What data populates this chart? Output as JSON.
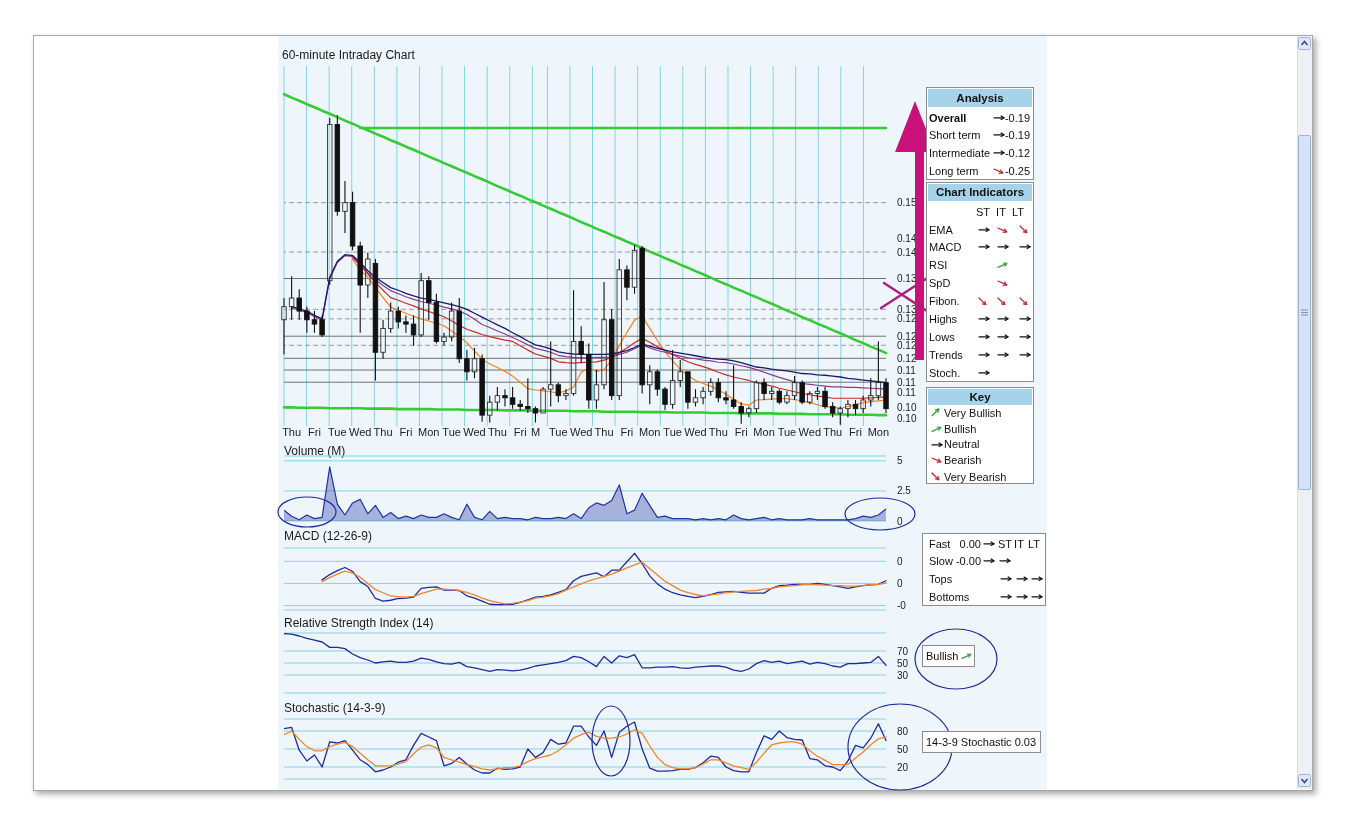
{
  "chart_data": [
    {
      "type": "candlestick",
      "title": "60-minute Intraday Chart",
      "categories": [
        null,
        "Thu",
        null,
        null,
        "Fri",
        null,
        null,
        "Tue",
        null,
        null,
        "Wed",
        null,
        null,
        "Thu",
        null,
        null,
        "Fri",
        null,
        null,
        "Mon",
        null,
        null,
        "Tue",
        null,
        null,
        "Wed",
        null,
        null,
        "Thu",
        null,
        null,
        "Fri",
        null,
        "M",
        null,
        null,
        "Tue",
        null,
        null,
        "Wed",
        null,
        null,
        "Thu",
        null,
        null,
        "Fri",
        null,
        null,
        "Mon",
        null,
        null,
        "Tue",
        null,
        null,
        "Wed",
        null,
        null,
        "Thu",
        null,
        null,
        "Fri",
        null,
        null,
        "Mon",
        null,
        null,
        "Tue",
        null,
        null,
        "Wed",
        null,
        null,
        "Thu",
        null,
        null,
        "Fri",
        null,
        null,
        "Mon",
        null
      ],
      "ohlc": [
        [
          0.124,
          0.129,
          0.116,
          0.127
        ],
        [
          0.127,
          0.134,
          0.124,
          0.129
        ],
        [
          0.129,
          0.131,
          0.124,
          0.126
        ],
        [
          0.126,
          0.127,
          0.121,
          0.124
        ],
        [
          0.124,
          0.126,
          0.121,
          0.123
        ],
        [
          0.124,
          0.125,
          0.12,
          0.1205
        ],
        [
          0.133,
          0.1705,
          0.132,
          0.169
        ],
        [
          0.169,
          0.1712,
          0.148,
          0.149
        ],
        [
          0.149,
          0.156,
          0.144,
          0.151
        ],
        [
          0.151,
          0.1535,
          0.14,
          0.141
        ],
        [
          0.141,
          0.142,
          0.121,
          0.132
        ],
        [
          0.132,
          0.1395,
          0.129,
          0.138
        ],
        [
          0.137,
          0.138,
          0.11,
          0.1165
        ],
        [
          0.1165,
          0.124,
          0.115,
          0.122
        ],
        [
          0.122,
          0.128,
          0.121,
          0.126
        ],
        [
          0.126,
          0.127,
          0.122,
          0.1235
        ],
        [
          0.1235,
          0.125,
          0.121,
          0.123
        ],
        [
          0.123,
          0.125,
          0.118,
          0.1205
        ],
        [
          0.1205,
          0.1348,
          0.12,
          0.133
        ],
        [
          0.133,
          0.134,
          0.124,
          0.128
        ],
        [
          0.128,
          0.13,
          0.1185,
          0.119
        ],
        [
          0.119,
          0.121,
          0.118,
          0.12
        ],
        [
          0.12,
          0.128,
          0.119,
          0.126
        ],
        [
          0.126,
          0.129,
          0.114,
          0.115
        ],
        [
          0.115,
          0.117,
          0.11,
          0.112
        ],
        [
          0.112,
          0.1175,
          0.1105,
          0.115
        ],
        [
          0.115,
          0.116,
          0.1005,
          0.102
        ],
        [
          0.102,
          0.1065,
          0.1003,
          0.105
        ],
        [
          0.105,
          0.1085,
          0.103,
          0.1065
        ],
        [
          0.1065,
          0.108,
          0.104,
          0.106
        ],
        [
          0.106,
          0.1085,
          0.1035,
          0.1045
        ],
        [
          0.1045,
          0.1055,
          0.103,
          0.104
        ],
        [
          0.104,
          0.1105,
          0.1025,
          0.1035
        ],
        [
          0.1035,
          0.104,
          0.1003,
          0.1025
        ],
        [
          0.1025,
          0.1085,
          0.1025,
          0.108
        ],
        [
          0.108,
          0.119,
          0.104,
          0.109
        ],
        [
          0.109,
          0.1095,
          0.105,
          0.1065
        ],
        [
          0.1065,
          0.108,
          0.1055,
          0.107
        ],
        [
          0.107,
          0.1308,
          0.1065,
          0.119
        ],
        [
          0.119,
          0.1225,
          0.114,
          0.116
        ],
        [
          0.116,
          0.1185,
          0.1035,
          0.1055
        ],
        [
          0.1055,
          0.1125,
          0.1035,
          0.109
        ],
        [
          0.109,
          0.1327,
          0.108,
          0.124
        ],
        [
          0.124,
          0.1265,
          0.1055,
          0.1065
        ],
        [
          0.1065,
          0.138,
          0.1055,
          0.1355
        ],
        [
          0.1355,
          0.1365,
          0.1285,
          0.1315
        ],
        [
          0.1315,
          0.1412,
          0.13,
          0.14
        ],
        [
          0.1405,
          0.141,
          0.107,
          0.109
        ],
        [
          0.109,
          0.1135,
          0.1045,
          0.112
        ],
        [
          0.112,
          0.1125,
          0.1065,
          0.108
        ],
        [
          0.108,
          0.1085,
          0.1032,
          0.1045
        ],
        [
          0.1045,
          0.117,
          0.1035,
          0.11
        ],
        [
          0.11,
          0.1147,
          0.1085,
          0.112
        ],
        [
          0.112,
          0.112,
          0.1035,
          0.105
        ],
        [
          0.105,
          0.108,
          0.104,
          0.106
        ],
        [
          0.106,
          0.1085,
          0.1045,
          0.1075
        ],
        [
          0.1075,
          0.1105,
          0.1065,
          0.1095
        ],
        [
          0.1095,
          0.1105,
          0.105,
          0.106
        ],
        [
          0.106,
          0.1075,
          0.1045,
          0.1055
        ],
        [
          0.1055,
          0.1135,
          0.1035,
          0.104
        ],
        [
          0.104,
          0.105,
          0.1,
          0.1025
        ],
        [
          0.1025,
          0.104,
          0.1015,
          0.1035
        ],
        [
          0.1035,
          0.11,
          0.1025,
          0.1095
        ],
        [
          0.1095,
          0.1105,
          0.1055,
          0.107
        ],
        [
          0.107,
          0.1085,
          0.1055,
          0.1075
        ],
        [
          0.1075,
          0.108,
          0.1045,
          0.105
        ],
        [
          0.105,
          0.1075,
          0.1045,
          0.1065
        ],
        [
          0.1065,
          0.111,
          0.1055,
          0.1095
        ],
        [
          0.1095,
          0.11,
          0.1045,
          0.105
        ],
        [
          0.105,
          0.1075,
          0.1045,
          0.107
        ],
        [
          0.107,
          0.1085,
          0.1055,
          0.1075
        ],
        [
          0.1075,
          0.1085,
          0.1035,
          0.104
        ],
        [
          0.104,
          0.105,
          0.1015,
          0.1025
        ],
        [
          0.1025,
          0.104,
          0.0998,
          0.1035
        ],
        [
          0.1035,
          0.1055,
          0.1015,
          0.1045
        ],
        [
          0.1045,
          0.1055,
          0.102,
          0.1035
        ],
        [
          0.1035,
          0.1065,
          0.1025,
          0.1055
        ],
        [
          0.1055,
          0.1105,
          0.104,
          0.1065
        ],
        [
          0.1065,
          0.119,
          0.1055,
          0.1095
        ],
        [
          0.1095,
          0.1105,
          0.1025,
          0.1035
        ]
      ],
      "ylim": [
        0.0995,
        0.1825
      ],
      "yticks": [
        {
          "value": 0.151,
          "label": "0.15"
        },
        {
          "value": 0.1427,
          "label": "0.14"
        },
        {
          "value": 0.1396,
          "label": "0.14"
        },
        {
          "value": 0.1335,
          "label": "0.13"
        },
        {
          "value": 0.1264,
          "label": "0.13"
        },
        {
          "value": 0.1242,
          "label": "0.12"
        },
        {
          "value": 0.1202,
          "label": "0.12"
        },
        {
          "value": 0.1181,
          "label": "0.12"
        },
        {
          "value": 0.1151,
          "label": "0.12"
        },
        {
          "value": 0.1124,
          "label": "0.11"
        },
        {
          "value": 0.1096,
          "label": "0.11"
        },
        {
          "value": 0.1072,
          "label": "0.11"
        },
        {
          "value": 0.1038,
          "label": "0.10"
        },
        {
          "value": 0.1012,
          "label": "0.10"
        }
      ],
      "grid": "x",
      "ref_lines": [
        {
          "axis": "y",
          "value": 0.151,
          "color": "#9a9a9a",
          "line_style": "dashed"
        },
        {
          "axis": "y",
          "value": 0.1396,
          "color": "#9a9a9a",
          "line_style": "dashed"
        },
        {
          "axis": "y",
          "value": 0.1335,
          "color": "#707070"
        },
        {
          "axis": "y",
          "value": 0.1264,
          "color": "#9a9a9a",
          "line_style": "dashed"
        },
        {
          "axis": "y",
          "value": 0.1242,
          "color": "#9a9a9a",
          "line_style": "dashed"
        },
        {
          "axis": "y",
          "value": 0.1202,
          "color": "#707070"
        },
        {
          "axis": "y",
          "value": 0.1181,
          "color": "#9a9a9a",
          "line_style": "dashed"
        },
        {
          "axis": "y",
          "value": 0.1151,
          "color": "#707070"
        },
        {
          "axis": "y",
          "value": 0.1124,
          "color": "#707070"
        },
        {
          "axis": "y",
          "value": 0.1096,
          "color": "#707070"
        }
      ],
      "series": [
        {
          "type": "line",
          "color": "#f5821f",
          "values": [
            null,
            null,
            null,
            null,
            null,
            null,
            null,
            null,
            null,
            0.1379,
            0.1355,
            0.1338,
            0.1314,
            0.1291,
            0.1269,
            0.1262,
            0.1255,
            0.1248,
            0.1242,
            0.1237,
            0.1232,
            0.1226,
            0.1214,
            0.1202,
            0.1187,
            0.1168,
            0.1149,
            0.1138,
            0.113,
            0.1121,
            0.111,
            0.1096,
            0.1081,
            0.1078,
            0.1076,
            0.1074,
            0.1071,
            0.1076,
            0.1085,
            0.1119,
            0.1129,
            0.1121,
            0.1125,
            0.1148,
            0.118,
            0.1211,
            0.1239,
            0.1248,
            0.122,
            0.1192,
            0.1166,
            0.1145,
            0.1126,
            0.1112,
            0.11,
            0.1093,
            0.1087,
            0.1078,
            0.1068,
            0.1057,
            0.1046,
            0.1043,
            0.1055,
            0.1056,
            0.1057,
            0.1058,
            0.1058,
            0.1056,
            0.1053,
            0.1049,
            0.1044,
            0.1039,
            0.1038,
            0.1036,
            0.104,
            0.1044,
            0.1049,
            0.1051,
            0.1053,
            0.1055
          ]
        },
        {
          "type": "line",
          "color": "#cc2a2a",
          "values": [
            null,
            null,
            null,
            null,
            null,
            null,
            null,
            null,
            null,
            0.1383,
            0.1366,
            0.1345,
            0.1326,
            0.1308,
            0.1291,
            0.1285,
            0.1278,
            0.1272,
            0.1265,
            0.1259,
            0.1253,
            0.1247,
            0.1237,
            0.1227,
            0.1218,
            0.1212,
            0.1206,
            0.1201,
            0.1197,
            0.1193,
            0.119,
            0.118,
            0.117,
            0.1161,
            0.1156,
            0.1151,
            0.1143,
            0.1141,
            0.114,
            0.1141,
            0.1142,
            0.1143,
            0.1147,
            0.1153,
            0.1164,
            0.1175,
            0.1187,
            0.1197,
            0.1188,
            0.1178,
            0.1169,
            0.116,
            0.1151,
            0.1143,
            0.1137,
            0.1132,
            0.1126,
            0.1119,
            0.1113,
            0.1108,
            0.1104,
            0.11,
            0.1095,
            0.1091,
            0.1087,
            0.1082,
            0.1078,
            0.1074,
            0.107,
            0.1067,
            0.1064,
            0.1062,
            0.1059,
            0.1059,
            0.1059,
            0.1059,
            0.1059,
            0.106,
            0.1061,
            0.1062
          ]
        },
        {
          "type": "line",
          "color": "#8e3a8e",
          "values": [
            null,
            0.1267,
            0.1262,
            0.1257,
            0.1247,
            0.1239,
            0.1334,
            0.1372,
            0.1388,
            0.1386,
            0.1369,
            0.1348,
            0.1332,
            0.1319,
            0.1307,
            0.13,
            0.1293,
            0.1287,
            0.1282,
            0.1278,
            0.1274,
            0.1269,
            0.1265,
            0.126,
            0.1252,
            0.1241,
            0.1229,
            0.1222,
            0.1214,
            0.1207,
            0.1199,
            0.1191,
            0.1182,
            0.1174,
            0.117,
            0.1165,
            0.1158,
            0.1155,
            0.1153,
            0.1152,
            0.1152,
            0.1153,
            0.1153,
            0.1154,
            0.116,
            0.1165,
            0.1173,
            0.1182,
            0.1175,
            0.1169,
            0.1165,
            0.116,
            0.1156,
            0.1152,
            0.115,
            0.1147,
            0.1145,
            0.1142,
            0.1141,
            0.1138,
            0.1134,
            0.113,
            0.1125,
            0.1119,
            0.1113,
            0.1107,
            0.1102,
            0.1097,
            0.1093,
            0.1091,
            0.1089,
            0.1087,
            0.1085,
            0.1085,
            0.1084,
            0.1084,
            0.1083,
            0.1082,
            0.1081,
            0.108
          ]
        },
        {
          "type": "line",
          "color": "#1a1a6e",
          "values": [
            null,
            0.127,
            0.1265,
            0.126,
            0.125,
            0.1242,
            0.1338,
            0.1375,
            0.139,
            0.1388,
            0.1372,
            0.1353,
            0.1338,
            0.1326,
            0.1314,
            0.1308,
            0.1301,
            0.1295,
            0.129,
            0.1287,
            0.1283,
            0.1279,
            0.1275,
            0.127,
            0.1264,
            0.1255,
            0.1246,
            0.1237,
            0.1228,
            0.122,
            0.121,
            0.1201,
            0.1191,
            0.1182,
            0.1178,
            0.1173,
            0.1166,
            0.1163,
            0.1161,
            0.116,
            0.116,
            0.116,
            0.116,
            0.1161,
            0.1165,
            0.1169,
            0.1176,
            0.1184,
            0.1179,
            0.1174,
            0.117,
            0.1166,
            0.1163,
            0.116,
            0.1157,
            0.1154,
            0.1151,
            0.1149,
            0.1148,
            0.1145,
            0.1141,
            0.1136,
            0.1131,
            0.1129,
            0.1126,
            0.1124,
            0.1122,
            0.1119,
            0.1116,
            0.1115,
            0.1113,
            0.1112,
            0.111,
            0.1108,
            0.1105,
            0.1103,
            0.1101,
            0.1099,
            0.1097,
            0.1095
          ]
        },
        {
          "type": "line",
          "color": "#33cc33",
          "values": [
            0.176,
            0.1752,
            0.1745,
            0.1737,
            0.173,
            0.1722,
            0.1715,
            0.1707,
            0.1699,
            0.1692,
            0.1684,
            0.1677,
            0.1669,
            0.1662,
            0.1654,
            0.1647,
            0.1639,
            0.1632,
            0.1624,
            0.1616,
            0.1609,
            0.1601,
            0.1594,
            0.1586,
            0.1579,
            0.1571,
            0.1564,
            0.1556,
            0.1548,
            0.1541,
            0.1533,
            0.1526,
            0.1518,
            0.1511,
            0.1503,
            0.1496,
            0.1488,
            0.1481,
            0.1473,
            0.1465,
            0.1458,
            0.145,
            0.1443,
            0.1435,
            0.1428,
            0.142,
            0.1413,
            0.1405,
            0.1397,
            0.139,
            0.1382,
            0.1375,
            0.1367,
            0.136,
            0.1352,
            0.1345,
            0.1337,
            0.1329,
            0.1322,
            0.1314,
            0.1307,
            0.1299,
            0.1292,
            0.1284,
            0.1277,
            0.1269,
            0.1261,
            0.1254,
            0.1246,
            0.1239,
            0.1231,
            0.1224,
            0.1216,
            0.1209,
            0.1201,
            0.1193,
            0.1186,
            0.1178,
            0.1171,
            0.1163
          ]
        },
        {
          "type": "line",
          "color": "#33cc33",
          "values": [
            null,
            null,
            null,
            null,
            null,
            null,
            null,
            null,
            null,
            null,
            0.1682,
            0.1682,
            0.1682,
            0.1682,
            0.1682,
            0.1682,
            0.1682,
            0.1682,
            0.1682,
            0.1682,
            0.1682,
            0.1682,
            0.1682,
            0.1682,
            0.1682,
            0.1682,
            0.1682,
            0.1682,
            0.1682,
            0.1682,
            0.1682,
            0.1682,
            0.1682,
            0.1682,
            0.1682,
            0.1682,
            0.1682,
            0.1682,
            0.1682,
            0.1682,
            0.1682,
            0.1682,
            0.1682,
            0.1682,
            0.1682,
            0.1682,
            0.1682,
            0.1682,
            0.1682,
            0.1682,
            0.1682,
            0.1682,
            0.1682,
            0.1682,
            0.1682,
            0.1682,
            0.1682,
            0.1682,
            0.1682,
            0.1682,
            0.1682,
            0.1682,
            0.1682,
            0.1682,
            0.1682,
            0.1682,
            0.1682,
            0.1682,
            0.1682,
            0.1682,
            0.1682,
            0.1682,
            0.1682,
            0.1682,
            0.1682,
            0.1682,
            0.1682,
            0.1682,
            0.1682,
            0.1682
          ]
        },
        {
          "type": "line",
          "color": "#33cc33",
          "values": [
            0.1038,
            0.1038,
            0.1037,
            0.1037,
            0.1037,
            0.1037,
            0.1036,
            0.1036,
            0.1036,
            0.1036,
            0.1036,
            0.1035,
            0.1035,
            0.1035,
            0.1035,
            0.1034,
            0.1034,
            0.1034,
            0.1034,
            0.1034,
            0.1033,
            0.1033,
            0.1033,
            0.1033,
            0.1032,
            0.1032,
            0.1032,
            0.1032,
            0.1032,
            0.1031,
            0.1031,
            0.1031,
            0.1031,
            0.103,
            0.103,
            0.103,
            0.103,
            0.103,
            0.1029,
            0.1029,
            0.1029,
            0.1029,
            0.1028,
            0.1028,
            0.1028,
            0.1028,
            0.1028,
            0.1027,
            0.1027,
            0.1027,
            0.1027,
            0.1026,
            0.1026,
            0.1026,
            0.1026,
            0.1026,
            0.1025,
            0.1025,
            0.1025,
            0.1025,
            0.1024,
            0.1024,
            0.1024,
            0.1024,
            0.1024,
            0.1023,
            0.1023,
            0.1023,
            0.1023,
            0.1022,
            0.1022,
            0.1022,
            0.1022,
            0.1022,
            0.1021,
            0.1021,
            0.1021,
            0.1021,
            0.102,
            0.102
          ]
        }
      ]
    },
    {
      "type": "area",
      "title": "Volume (M)",
      "color": "#2233a0",
      "categories": [
        null,
        null,
        null,
        null,
        null,
        null,
        null,
        null,
        null,
        null,
        null,
        null,
        null,
        null,
        null,
        null,
        null,
        null,
        null,
        null,
        null,
        null,
        null,
        null,
        null,
        null,
        null,
        null,
        null,
        null,
        null,
        null,
        null,
        null,
        null,
        null,
        null,
        null,
        null,
        null,
        null,
        null,
        null,
        null,
        null,
        null,
        null,
        null,
        null,
        null,
        null,
        null,
        null,
        null,
        null,
        null,
        null,
        null,
        null,
        null,
        null,
        null,
        null,
        null,
        null,
        null,
        null,
        null,
        null,
        null,
        null,
        null,
        null,
        null,
        null,
        null,
        null,
        null,
        null,
        null
      ],
      "values": [
        0.9,
        0.4,
        0.1,
        0.5,
        0.2,
        0.3,
        4.5,
        1.4,
        0.5,
        1.5,
        1.8,
        0.6,
        1.3,
        0.3,
        0.7,
        0.2,
        0.4,
        0.2,
        0.5,
        0.3,
        0.3,
        0.6,
        0.3,
        0.1,
        1.4,
        0.3,
        0.1,
        0.8,
        0.2,
        0.3,
        0.2,
        0.2,
        0.1,
        0.3,
        0.2,
        0.2,
        0.3,
        0.2,
        0.6,
        0.2,
        1.1,
        1.5,
        1.3,
        1.7,
        3.0,
        0.6,
        0.9,
        2.3,
        1.3,
        0.3,
        0.4,
        0.2,
        0.2,
        0.2,
        0.1,
        0.2,
        0.1,
        0.2,
        0.1,
        0.5,
        0.2,
        0.1,
        0.2,
        0.3,
        0.1,
        0.2,
        0.1,
        0.1,
        0.1,
        0.2,
        0.1,
        0.1,
        0.1,
        0.1,
        0.1,
        0.2,
        0.4,
        0.3,
        0.5,
        1.0
      ],
      "ylim": [
        0,
        5.4
      ],
      "yticks": [
        0,
        2.5,
        5
      ],
      "grid": "y",
      "tick_labels": "y"
    },
    {
      "type": "line",
      "title": "MACD (12-26-9)",
      "categories": [
        null,
        null,
        null,
        null,
        null,
        null,
        null,
        null,
        null,
        null,
        null,
        null,
        null,
        null,
        null,
        null,
        null,
        null,
        null,
        null,
        null,
        null,
        null,
        null,
        null,
        null,
        null,
        null,
        null,
        null,
        null,
        null,
        null,
        null,
        null,
        null,
        null,
        null,
        null,
        null,
        null,
        null,
        null,
        null,
        null,
        null,
        null,
        null,
        null,
        null,
        null,
        null,
        null,
        null,
        null,
        null,
        null,
        null,
        null,
        null,
        null,
        null,
        null,
        null,
        null,
        null,
        null,
        null,
        null,
        null,
        null,
        null,
        null,
        null,
        null,
        null,
        null,
        null,
        null,
        null
      ],
      "series": [
        {
          "color": "#1f2a9e",
          "values": [
            null,
            null,
            null,
            null,
            null,
            0.0008,
            0.002,
            0.0029,
            0.0036,
            0.0027,
            0.0004,
            -0.0007,
            -0.0034,
            -0.004,
            -0.0038,
            -0.0034,
            -0.0033,
            -0.0031,
            -0.0011,
            -0.0009,
            -0.0008,
            -0.0015,
            -0.0015,
            -0.0016,
            -0.0028,
            -0.0033,
            -0.004,
            -0.0047,
            -0.0048,
            -0.0048,
            -0.0047,
            -0.0043,
            -0.0037,
            -0.0031,
            -0.0029,
            -0.0026,
            -0.002,
            -0.0014,
            0.0006,
            0.0016,
            0.002,
            0.0024,
            0.0015,
            0.003,
            0.003,
            0.0049,
            0.0068,
            0.0045,
            0.0017,
            -0.0001,
            -0.0013,
            -0.0021,
            -0.0026,
            -0.0029,
            -0.0032,
            -0.0029,
            -0.0025,
            -0.002,
            -0.0019,
            -0.0018,
            -0.002,
            -0.0022,
            -0.0022,
            -0.0022,
            -0.0011,
            -0.0005,
            -0.0004,
            -0.0002,
            -0.0002,
            -0.0002,
            0,
            -0.0002,
            -0.0005,
            -0.0008,
            -0.0011,
            -0.0008,
            -0.0005,
            -0.0003,
            -0.0002,
            0.0006
          ]
        },
        {
          "color": "#f0852a",
          "values": [
            null,
            null,
            null,
            null,
            null,
            0.0004,
            0.0013,
            0.0021,
            0.0028,
            0.0023,
            0.0014,
            0,
            -0.0014,
            -0.0021,
            -0.0028,
            -0.003,
            -0.0031,
            -0.0029,
            -0.0023,
            -0.0018,
            -0.0013,
            -0.0013,
            -0.0014,
            -0.0016,
            -0.002,
            -0.0026,
            -0.0033,
            -0.0039,
            -0.0043,
            -0.0046,
            -0.0045,
            -0.0042,
            -0.0039,
            -0.0033,
            -0.0031,
            -0.0028,
            -0.0023,
            -0.0015,
            -0.0008,
            -0.0001,
            0.0006,
            0.0011,
            0.0016,
            0.0021,
            0.0028,
            0.0035,
            0.0042,
            0.0048,
            0.0033,
            0.0019,
            0.0005,
            -0.0005,
            -0.0015,
            -0.0021,
            -0.0025,
            -0.0028,
            -0.0026,
            -0.0024,
            -0.0021,
            -0.0019,
            -0.0018,
            -0.0017,
            -0.0016,
            -0.0013,
            -0.0011,
            -0.0008,
            -0.0006,
            -0.0005,
            -0.0003,
            -0.0002,
            -0.0003,
            -0.0004,
            -0.0005,
            -0.0005,
            -0.0006,
            -0.0006,
            -0.0005,
            -0.0003,
            -0.0002,
            0.0001
          ]
        }
      ],
      "ylim": [
        -0.006,
        0.008
      ],
      "yticks": [
        {
          "value": -0.005,
          "label": "-0"
        },
        0,
        {
          "value": 0.005,
          "label": "0"
        }
      ],
      "grid": "y",
      "tick_labels": "y"
    },
    {
      "type": "line",
      "title": "Relative Strength Index (14)",
      "color": "#1f2a9e",
      "categories": [
        null,
        null,
        null,
        null,
        null,
        null,
        null,
        null,
        null,
        null,
        null,
        null,
        null,
        null,
        null,
        null,
        null,
        null,
        null,
        null,
        null,
        null,
        null,
        null,
        null,
        null,
        null,
        null,
        null,
        null,
        null,
        null,
        null,
        null,
        null,
        null,
        null,
        null,
        null,
        null,
        null,
        null,
        null,
        null,
        null,
        null,
        null,
        null,
        null,
        null,
        null,
        null,
        null,
        null,
        null,
        null,
        null,
        null,
        null,
        null,
        null,
        null,
        null,
        null,
        null,
        null,
        null,
        null,
        null,
        null,
        null,
        null,
        null,
        null,
        null,
        null,
        null,
        null,
        null,
        null
      ],
      "values": [
        99,
        98,
        95,
        91,
        88,
        85,
        76,
        76,
        74,
        65,
        59,
        55,
        50,
        52,
        53,
        51,
        51,
        53,
        58,
        56,
        52,
        49,
        48,
        51,
        44,
        42,
        39,
        36,
        39,
        38,
        37,
        38,
        41,
        45,
        47,
        49,
        51,
        54,
        61,
        59,
        52,
        44,
        61,
        50,
        62,
        59,
        64,
        42,
        42,
        43,
        43,
        44,
        42,
        41,
        43,
        44,
        45,
        45,
        43,
        38,
        36,
        40,
        49,
        54,
        51,
        53,
        49,
        51,
        53,
        48,
        51,
        49,
        45,
        43,
        49,
        49,
        50,
        51,
        61,
        46
      ],
      "ylim": [
        0,
        100
      ],
      "yticks": [
        30,
        50,
        70
      ],
      "grid": "y",
      "tick_labels": "y"
    },
    {
      "type": "line",
      "title": "Stochastic (14-3-9)",
      "categories": [
        null,
        null,
        null,
        null,
        null,
        null,
        null,
        null,
        null,
        null,
        null,
        null,
        null,
        null,
        null,
        null,
        null,
        null,
        null,
        null,
        null,
        null,
        null,
        null,
        null,
        null,
        null,
        null,
        null,
        null,
        null,
        null,
        null,
        null,
        null,
        null,
        null,
        null,
        null,
        null,
        null,
        null,
        null,
        null,
        null,
        null,
        null,
        null,
        null,
        null,
        null,
        null,
        null,
        null,
        null,
        null,
        null,
        null,
        null,
        null,
        null,
        null,
        null,
        null,
        null,
        null,
        null,
        null,
        null,
        null,
        null,
        null,
        null,
        null,
        null,
        null,
        null,
        null,
        null,
        null
      ],
      "series": [
        {
          "color": "#1f2a9e",
          "values": [
            84,
            86,
            48,
            30,
            40,
            20,
            62,
            60,
            64,
            48,
            32,
            24,
            12,
            15,
            20,
            28,
            32,
            56,
            76,
            70,
            64,
            22,
            26,
            36,
            25,
            15,
            10,
            10,
            18,
            16,
            17,
            20,
            50,
            36,
            44,
            66,
            58,
            60,
            88,
            88,
            70,
            56,
            80,
            36,
            78,
            88,
            95,
            50,
            18,
            13,
            13,
            14,
            16,
            16,
            19,
            27,
            38,
            36,
            20,
            14,
            12,
            12,
            44,
            72,
            66,
            80,
            69,
            66,
            65,
            34,
            32,
            22,
            20,
            14,
            30,
            56,
            52,
            68,
            92,
            64
          ]
        },
        {
          "color": "#f0852a",
          "values": [
            74,
            80,
            66,
            54,
            47,
            47,
            54,
            58,
            61,
            54,
            43,
            32,
            22,
            22,
            22,
            25,
            29,
            42,
            53,
            57,
            52,
            36,
            32,
            28,
            24,
            21,
            17,
            15,
            17,
            19,
            19,
            22,
            29,
            34,
            37,
            40,
            47,
            57,
            68,
            74,
            78,
            71,
            68,
            68,
            70,
            75,
            82,
            76,
            55,
            36,
            24,
            19,
            17,
            17,
            19,
            25,
            32,
            32,
            27,
            22,
            19,
            16,
            28,
            43,
            57,
            60,
            62,
            62,
            58,
            47,
            38,
            31,
            24,
            24,
            24,
            35,
            45,
            57,
            67,
            70
          ]
        }
      ],
      "ylim": [
        0,
        100
      ],
      "yticks": [
        20,
        50,
        80
      ],
      "grid": "y",
      "tick_labels": "y"
    },
    {
      "type": "other",
      "title": "Analysis",
      "annotations": [
        "Overall",
        "-0.19",
        "Short term",
        "-0.19",
        "Intermediate",
        "-0.12",
        "Long term",
        "-0.25"
      ]
    },
    {
      "type": "other",
      "title": "Chart Indicators",
      "annotations": [
        "ST",
        "IT",
        "LT",
        "EMA",
        "MACD",
        "RSI",
        "SpD",
        "Fibon.",
        "Highs",
        "Lows",
        "Trends",
        "Stoch."
      ]
    },
    {
      "type": "other",
      "title": "Key",
      "annotations": [
        "Very Bullish",
        "Bullish",
        "Neutral",
        "Bearish",
        "Very Bearish"
      ]
    },
    {
      "type": "other",
      "annotations": [
        "Fast",
        "0.00",
        "ST",
        "IT",
        "LT",
        "Slow",
        "-0.00",
        "Tops",
        "Bottoms"
      ]
    },
    {
      "type": "other",
      "annotations": [
        "Bullish"
      ]
    },
    {
      "type": "other",
      "annotations": [
        "14-3-9 Stochastic 0.03"
      ]
    }
  ]
}
